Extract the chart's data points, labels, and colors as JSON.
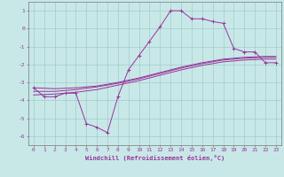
{
  "xlabel": "Windchill (Refroidissement éolien,°C)",
  "bg_color": "#c8e8e8",
  "line_color": "#993399",
  "grid_color": "#a0cccc",
  "x_main": [
    0,
    1,
    2,
    3,
    4,
    5,
    6,
    7,
    8,
    9,
    10,
    11,
    12,
    13,
    14,
    15,
    16,
    17,
    18,
    19,
    20,
    21,
    22,
    23
  ],
  "y_main": [
    -3.3,
    -3.8,
    -3.8,
    -3.6,
    -3.6,
    -5.3,
    -5.5,
    -5.8,
    -3.8,
    -2.3,
    -1.5,
    -0.7,
    0.1,
    1.0,
    1.0,
    0.55,
    0.55,
    0.4,
    0.3,
    -1.1,
    -1.3,
    -1.3,
    -1.9,
    -1.9
  ],
  "reg1_x": [
    0,
    2,
    4,
    6,
    8,
    10,
    12,
    14,
    16,
    18,
    20,
    22,
    23
  ],
  "reg1_y": [
    -3.3,
    -3.35,
    -3.3,
    -3.2,
    -3.0,
    -2.75,
    -2.45,
    -2.15,
    -1.9,
    -1.7,
    -1.6,
    -1.55,
    -1.55
  ],
  "reg2_x": [
    0,
    2,
    4,
    6,
    8,
    10,
    12,
    14,
    16,
    18,
    20,
    22,
    23
  ],
  "reg2_y": [
    -3.5,
    -3.5,
    -3.4,
    -3.25,
    -3.05,
    -2.8,
    -2.5,
    -2.2,
    -1.95,
    -1.75,
    -1.65,
    -1.6,
    -1.6
  ],
  "reg3_x": [
    0,
    2,
    4,
    6,
    8,
    10,
    12,
    14,
    16,
    18,
    20,
    22,
    23
  ],
  "reg3_y": [
    -3.7,
    -3.65,
    -3.55,
    -3.4,
    -3.15,
    -2.9,
    -2.6,
    -2.3,
    -2.05,
    -1.85,
    -1.75,
    -1.7,
    -1.7
  ],
  "xlim": [
    -0.5,
    23.5
  ],
  "ylim": [
    -6.5,
    1.5
  ],
  "yticks": [
    1,
    0,
    -1,
    -2,
    -3,
    -4,
    -5,
    -6
  ],
  "xticks": [
    0,
    1,
    2,
    3,
    4,
    5,
    6,
    7,
    8,
    9,
    10,
    11,
    12,
    13,
    14,
    15,
    16,
    17,
    18,
    19,
    20,
    21,
    22,
    23
  ],
  "tick_fontsize": 4.5,
  "xlabel_fontsize": 5.0,
  "marker": "+",
  "markersize": 3.5,
  "linewidth": 0.7
}
